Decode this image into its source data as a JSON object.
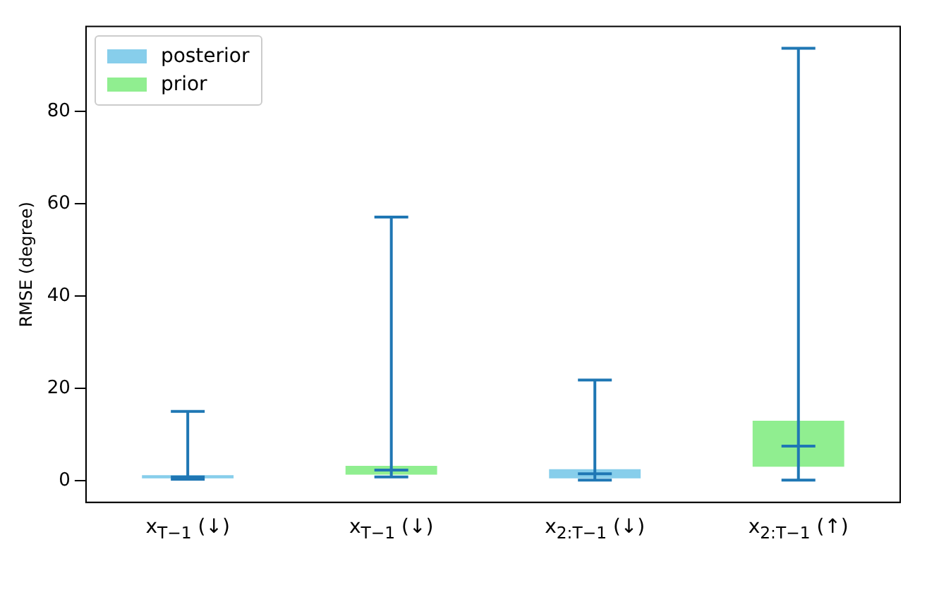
{
  "chart_data": {
    "type": "box",
    "ylabel": "RMSE (degree)",
    "categories": [
      "x$_{T−1}$ (↓)",
      "x$_{T−1}$ (↓)",
      "x$_{2:T−1}$ (↓)",
      "x$_{2:T−1}$ (↑)"
    ],
    "ylim": [
      -4.7,
      98.4
    ],
    "yticks": [
      0,
      20,
      40,
      60,
      80
    ],
    "grid": false,
    "legend": "top left",
    "series": [
      {
        "name": "posterior",
        "color": "#87ceeb",
        "boxes": [
          {
            "low": 0.3,
            "q1": 0.5,
            "median": 0.8,
            "q3": 1.2,
            "high": 15.0
          },
          null,
          {
            "low": 0.1,
            "q1": 0.5,
            "median": 1.5,
            "q3": 2.5,
            "high": 21.8
          },
          null
        ]
      },
      {
        "name": "prior",
        "color": "#90ee90",
        "boxes": [
          null,
          {
            "low": 0.8,
            "q1": 1.3,
            "median": 2.3,
            "q3": 3.2,
            "high": 57.1
          },
          null,
          {
            "low": 0.1,
            "q1": 3.0,
            "median": 7.5,
            "q3": 13.0,
            "high": 93.7
          }
        ]
      }
    ]
  }
}
